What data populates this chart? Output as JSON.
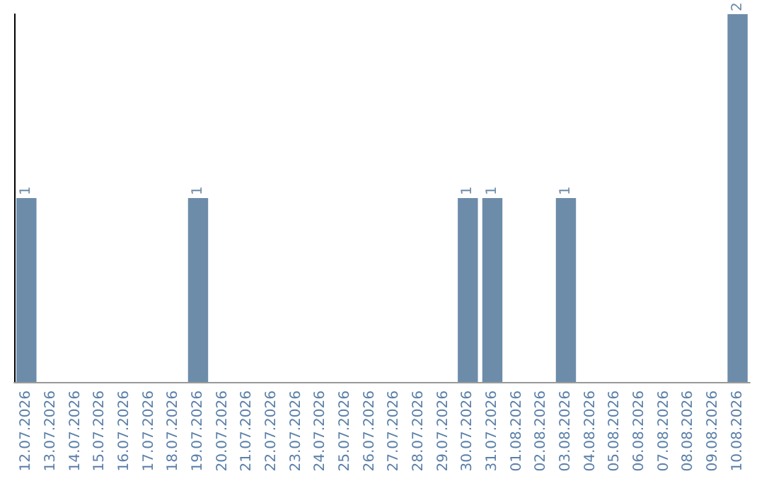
{
  "chart_data": {
    "type": "bar",
    "categories": [
      "12.07.2026",
      "13.07.2026",
      "14.07.2026",
      "15.07.2026",
      "16.07.2026",
      "17.07.2026",
      "18.07.2026",
      "19.07.2026",
      "20.07.2026",
      "21.07.2026",
      "22.07.2026",
      "23.07.2026",
      "24.07.2026",
      "25.07.2026",
      "26.07.2026",
      "27.07.2026",
      "28.07.2026",
      "29.07.2026",
      "30.07.2026",
      "31.07.2026",
      "01.08.2026",
      "02.08.2026",
      "03.08.2026",
      "04.08.2026",
      "05.08.2026",
      "06.08.2026",
      "07.08.2026",
      "08.08.2026",
      "09.08.2026",
      "10.08.2026"
    ],
    "values": [
      1,
      0,
      0,
      0,
      0,
      0,
      0,
      1,
      0,
      0,
      0,
      0,
      0,
      0,
      0,
      0,
      0,
      0,
      1,
      1,
      0,
      0,
      1,
      0,
      0,
      0,
      0,
      0,
      0,
      2
    ],
    "value_labels": [
      "1",
      null,
      null,
      null,
      null,
      null,
      null,
      "1",
      null,
      null,
      null,
      null,
      null,
      null,
      null,
      null,
      null,
      null,
      "1",
      "1",
      null,
      null,
      "1",
      null,
      null,
      null,
      null,
      null,
      null,
      "2"
    ],
    "color": "#6d8caa",
    "tick_labels": "x"
  }
}
